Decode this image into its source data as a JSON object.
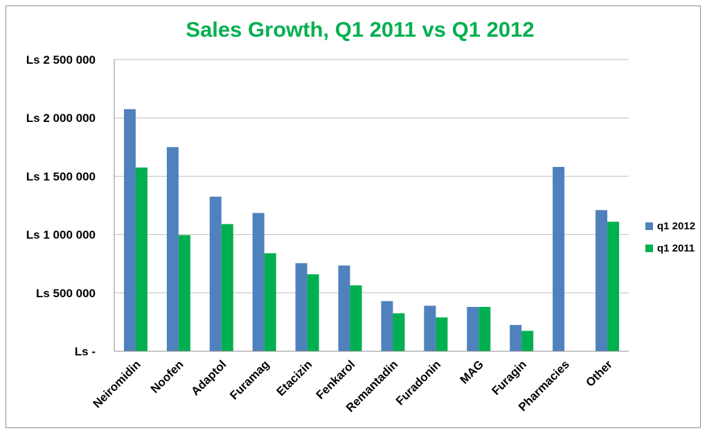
{
  "chart_data": {
    "type": "bar",
    "title": "Sales Growth, Q1 2011 vs Q1 2012",
    "xlabel": "",
    "ylabel": "",
    "categories": [
      "Neiromidin",
      "Noofen",
      "Adaptol",
      "Furamag",
      "Etacizin",
      "Fenkarol",
      "Remantadin",
      "Furadonin",
      "MAG",
      "Furagin",
      "Pharmacies",
      "Other"
    ],
    "series": [
      {
        "name": "q1 2012",
        "color": "#4f81bd",
        "values": [
          2075000,
          1750000,
          1325000,
          1185000,
          755000,
          735000,
          430000,
          390000,
          380000,
          225000,
          1580000,
          1210000
        ]
      },
      {
        "name": "q1 2011",
        "color": "#00b050",
        "values": [
          1575000,
          995000,
          1090000,
          840000,
          660000,
          565000,
          325000,
          290000,
          380000,
          175000,
          0,
          1110000
        ]
      }
    ],
    "ylim": [
      0,
      2500000
    ],
    "yticks": [
      0,
      500000,
      1000000,
      1500000,
      2000000,
      2500000
    ],
    "ytick_labels": [
      "Ls -",
      "Ls 500 000",
      "Ls 1 000 000",
      "Ls 1 500 000",
      "Ls 2 000 000",
      "Ls 2 500 000"
    ],
    "grid": true,
    "legend_position": "right"
  }
}
